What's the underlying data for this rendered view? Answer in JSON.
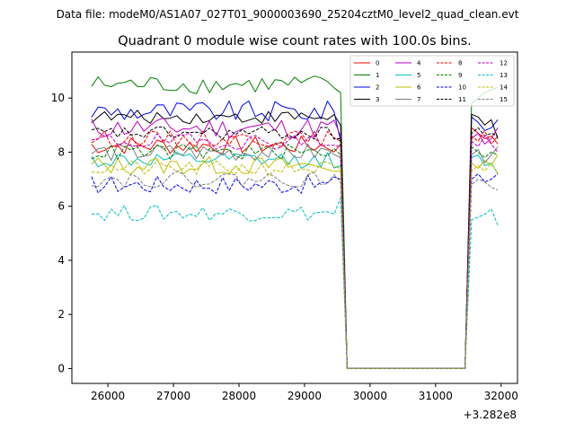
{
  "header": {
    "file_label": "Data file: modeM0/AS1A07_027T01_9000003690_25204cztM0_level2_quad_clean.evt"
  },
  "chart_data": {
    "type": "line",
    "title": "Quadrant 0 module wise count rates with 100.0s bins.",
    "xlabel": "",
    "ylabel": "",
    "x_offset_label": "+3.282e8",
    "xlim": [
      25450,
      32250
    ],
    "ylim": [
      -0.55,
      11.7
    ],
    "xticks": [
      26000,
      27000,
      28000,
      29000,
      30000,
      31000,
      32000
    ],
    "yticks": [
      0,
      2,
      4,
      6,
      8,
      10
    ],
    "legend_position": "top-right",
    "legend_columns": 4,
    "grid": false,
    "segments": [
      {
        "x_start": 25750,
        "x_end": 29550,
        "step": 100
      },
      {
        "x": [
          29650,
          31450
        ]
      },
      {
        "x_start": 31550,
        "x_end": 31950,
        "step": 100
      }
    ],
    "series": [
      {
        "name": "0",
        "color": "#ff0000",
        "dash": "solid",
        "seg1_base": 8.25,
        "seg1_var": 0.35,
        "drop_value": 8.3,
        "seg3": [
          8.9,
          8.7,
          8.5,
          8.6,
          8.3
        ]
      },
      {
        "name": "1",
        "color": "#008000",
        "dash": "solid",
        "seg1_base": 10.5,
        "seg1_var": 0.35,
        "drop_value": 10.2,
        "seg3": [
          9.8,
          10.0,
          10.2,
          10.3,
          10.4
        ]
      },
      {
        "name": "2",
        "color": "#0000ff",
        "dash": "solid",
        "seg1_base": 9.5,
        "seg1_var": 0.4,
        "drop_value": 8.4,
        "seg3": [
          9.3,
          9.1,
          8.8,
          8.9,
          9.2
        ]
      },
      {
        "name": "3",
        "color": "#000000",
        "dash": "solid",
        "seg1_base": 9.3,
        "seg1_var": 0.25,
        "drop_value": 9.0,
        "seg3": [
          9.4,
          9.3,
          9.0,
          9.2,
          8.5
        ]
      },
      {
        "name": "4",
        "color": "#bf00bf",
        "dash": "solid",
        "seg1_base": 8.9,
        "seg1_var": 0.4,
        "drop_value": 8.6,
        "seg3": [
          8.5,
          8.7,
          8.3,
          8.5,
          8.9
        ]
      },
      {
        "name": "5",
        "color": "#00bfbf",
        "dash": "solid",
        "seg1_base": 7.7,
        "seg1_var": 0.3,
        "drop_value": 7.5,
        "seg3": [
          7.8,
          7.9,
          7.5,
          7.6,
          7.2
        ]
      },
      {
        "name": "6",
        "color": "#bfbf00",
        "dash": "solid",
        "seg1_base": 7.5,
        "seg1_var": 0.35,
        "drop_value": 7.3,
        "seg3": [
          7.6,
          7.4,
          7.7,
          7.5,
          7.9
        ]
      },
      {
        "name": "7",
        "color": "#808080",
        "dash": "solid",
        "seg1_base": 8.0,
        "seg1_var": 0.35,
        "drop_value": 7.8,
        "seg3": [
          7.9,
          8.1,
          7.6,
          7.9,
          8.2
        ]
      },
      {
        "name": "8",
        "color": "#ff0000",
        "dash": "dashed",
        "seg1_base": 8.5,
        "seg1_var": 0.3,
        "drop_value": 8.4,
        "seg3": [
          8.6,
          8.4,
          8.8,
          8.3,
          8.6
        ]
      },
      {
        "name": "9",
        "color": "#008000",
        "dash": "dashed",
        "seg1_base": 8.0,
        "seg1_var": 0.3,
        "drop_value": 7.9,
        "seg3": [
          8.2,
          8.0,
          7.8,
          8.0,
          7.9
        ]
      },
      {
        "name": "10",
        "color": "#0000ff",
        "dash": "dashed",
        "seg1_base": 6.8,
        "seg1_var": 0.35,
        "drop_value": 7.0,
        "seg3": [
          7.0,
          7.2,
          6.9,
          7.0,
          7.2
        ]
      },
      {
        "name": "11",
        "color": "#000000",
        "dash": "dashed",
        "seg1_base": 8.7,
        "seg1_var": 0.25,
        "drop_value": 8.5,
        "seg3": [
          8.7,
          8.9,
          8.6,
          8.7,
          8.6
        ]
      },
      {
        "name": "12",
        "color": "#bf00bf",
        "dash": "dashed",
        "seg1_base": 8.4,
        "seg1_var": 0.3,
        "drop_value": 8.2,
        "seg3": [
          8.4,
          8.2,
          8.6,
          8.3,
          8.0
        ]
      },
      {
        "name": "13",
        "color": "#00bfbf",
        "dash": "dashed",
        "seg1_base": 5.75,
        "seg1_var": 0.3,
        "drop_value": 6.3,
        "seg3": [
          5.5,
          5.6,
          5.7,
          5.9,
          5.3
        ]
      },
      {
        "name": "14",
        "color": "#bfbf00",
        "dash": "dashed",
        "seg1_base": 7.4,
        "seg1_var": 0.3,
        "drop_value": 7.4,
        "seg3": [
          7.3,
          7.5,
          7.3,
          7.6,
          7.2
        ]
      },
      {
        "name": "15",
        "color": "#808080",
        "dash": "dashed",
        "seg1_base": 7.0,
        "seg1_var": 0.3,
        "drop_value": 6.9,
        "seg3": [
          6.8,
          7.0,
          6.9,
          6.7,
          6.6
        ]
      }
    ]
  }
}
